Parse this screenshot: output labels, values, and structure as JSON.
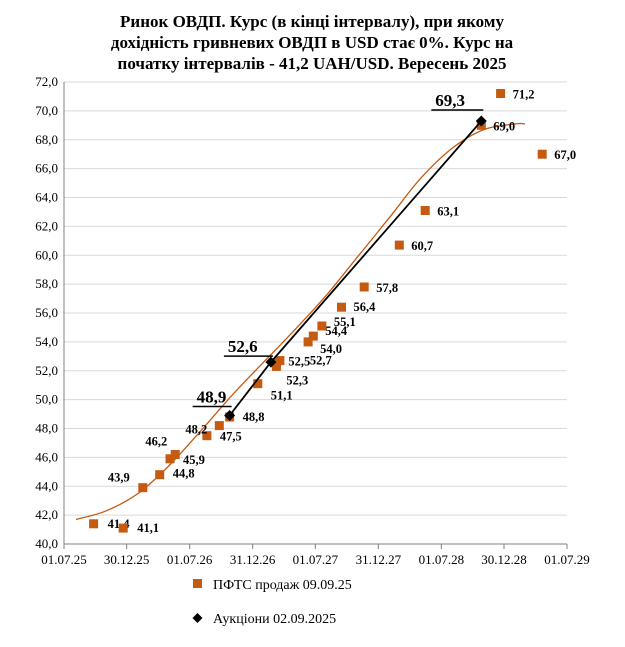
{
  "chart_data": {
    "type": "scatter",
    "title_lines": [
      "Ринок ОВДП. Курс (в кінці інтервалу), при якому",
      "дохідність гривневих ОВДП в USD стає  0%. Курс на",
      "початку інтервалів - 41,2 UAH/USD. Вересень 2025"
    ],
    "xlabel": "",
    "ylabel": "",
    "x_ticks": [
      "01.07.25",
      "30.12.25",
      "01.07.26",
      "31.12.26",
      "01.07.27",
      "31.12.27",
      "01.07.28",
      "30.12.28",
      "01.07.29"
    ],
    "xlim": [
      "01.07.25",
      "01.07.29"
    ],
    "ylim": [
      40,
      72
    ],
    "y_ticks": [
      "40,0",
      "42,0",
      "44,0",
      "46,0",
      "48,0",
      "50,0",
      "52,0",
      "54,0",
      "56,0",
      "58,0",
      "60,0",
      "62,0",
      "64,0",
      "66,0",
      "68,0",
      "70,0",
      "72,0"
    ],
    "grid": "horizontal",
    "colors": {
      "pfts": "#c55a11",
      "auction": "#000000",
      "trend": "#c55a11"
    },
    "series": [
      {
        "name": "ПФТС продаж 09.09.25",
        "marker": "square",
        "points": [
          {
            "x": "2025-09-25",
            "y": 41.4,
            "label": "41,4"
          },
          {
            "x": "2025-12-20",
            "y": 41.1,
            "label": "41,1"
          },
          {
            "x": "2026-02-15",
            "y": 43.9,
            "label": "43,9"
          },
          {
            "x": "2026-04-05",
            "y": 44.8,
            "label": "44,8"
          },
          {
            "x": "2026-05-05",
            "y": 45.9,
            "label": "45,9"
          },
          {
            "x": "2026-05-20",
            "y": 46.2,
            "label": "46,2"
          },
          {
            "x": "2026-08-20",
            "y": 47.5,
            "label": "47,5"
          },
          {
            "x": "2026-09-25",
            "y": 48.2,
            "label": "48,2"
          },
          {
            "x": "2026-10-25",
            "y": 48.8,
            "label": "48,8"
          },
          {
            "x": "2027-01-15",
            "y": 51.1,
            "label": "51,1"
          },
          {
            "x": "2027-03-10",
            "y": 52.3,
            "label": "52,3"
          },
          {
            "x": "2027-03-10",
            "y": 52.5,
            "label": "52,5"
          },
          {
            "x": "2027-03-20",
            "y": 52.7,
            "label": "52,7"
          },
          {
            "x": "2027-06-10",
            "y": 54.0,
            "label": "54,0"
          },
          {
            "x": "2027-06-25",
            "y": 54.4,
            "label": "54,4"
          },
          {
            "x": "2027-07-20",
            "y": 55.1,
            "label": "55,1"
          },
          {
            "x": "2027-09-15",
            "y": 56.4,
            "label": "56,4"
          },
          {
            "x": "2027-11-20",
            "y": 57.8,
            "label": "57,8"
          },
          {
            "x": "2028-03-01",
            "y": 60.7,
            "label": "60,7"
          },
          {
            "x": "2028-05-15",
            "y": 63.1,
            "label": "63,1"
          },
          {
            "x": "2028-10-25",
            "y": 69.0,
            "label": "69,0"
          },
          {
            "x": "2028-12-20",
            "y": 71.2,
            "label": "71,2"
          },
          {
            "x": "2029-04-20",
            "y": 67.0,
            "label": "67,0"
          }
        ]
      },
      {
        "name": "Аукціони 02.09.2025",
        "marker": "diamond",
        "connected": true,
        "points": [
          {
            "x": "2026-10-25",
            "y": 48.9,
            "label": "48,9"
          },
          {
            "x": "2027-02-22",
            "y": 52.6,
            "label": "52,6"
          },
          {
            "x": "2028-10-25",
            "y": 69.3,
            "label": "69,3"
          }
        ]
      }
    ],
    "trendline": {
      "type": "polynomial",
      "points": [
        {
          "x": "2025-08-05",
          "y": 41.7
        },
        {
          "x": "2025-11-01",
          "y": 42.3
        },
        {
          "x": "2026-02-01",
          "y": 43.5
        },
        {
          "x": "2026-05-01",
          "y": 45.4
        },
        {
          "x": "2026-08-01",
          "y": 47.8
        },
        {
          "x": "2026-11-01",
          "y": 50.3
        },
        {
          "x": "2027-02-01",
          "y": 52.6
        },
        {
          "x": "2027-05-01",
          "y": 54.8
        },
        {
          "x": "2027-08-01",
          "y": 57.2
        },
        {
          "x": "2027-11-01",
          "y": 59.9
        },
        {
          "x": "2028-02-01",
          "y": 62.6
        },
        {
          "x": "2028-05-01",
          "y": 65.3
        },
        {
          "x": "2028-08-01",
          "y": 67.4
        },
        {
          "x": "2028-11-01",
          "y": 68.7
        },
        {
          "x": "2029-02-01",
          "y": 69.1
        },
        {
          "x": "2029-03-01",
          "y": 69.1
        }
      ]
    },
    "legend": {
      "position": "bottom",
      "entries": [
        "ПФТС продаж 09.09.25",
        "Аукціони 02.09.2025"
      ]
    }
  }
}
